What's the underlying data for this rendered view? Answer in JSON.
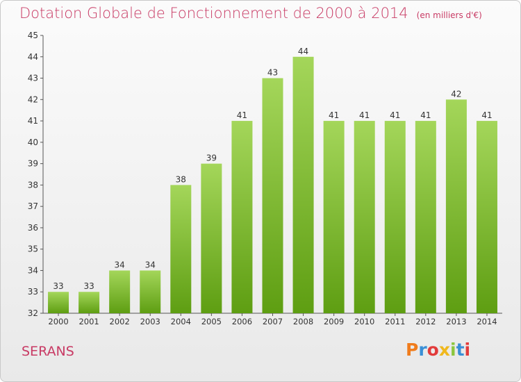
{
  "title": "Dotation Globale de Fonctionnement de 2000 à 2014",
  "unit_note": "(en milliers d'€)",
  "town": "SERANS",
  "logo": {
    "text": "Proxiti",
    "colors": [
      "#f07c1c",
      "#3a8fd6",
      "#e23b3b",
      "#f0b81c",
      "#8cc63f",
      "#3a8fd6",
      "#e23b3b"
    ]
  },
  "colors": {
    "accent": "#c83a64",
    "bar_top": "#a4d65a",
    "bar_bottom": "#5e9e12"
  },
  "chart_data": {
    "type": "bar",
    "categories": [
      "2000",
      "2001",
      "2002",
      "2003",
      "2004",
      "2005",
      "2006",
      "2007",
      "2008",
      "2009",
      "2010",
      "2011",
      "2012",
      "2013",
      "2014"
    ],
    "values": [
      33,
      33,
      34,
      34,
      38,
      39,
      41,
      43,
      44,
      41,
      41,
      41,
      41,
      42,
      41
    ],
    "ylim": [
      32,
      45
    ],
    "yticks": [
      32,
      33,
      34,
      35,
      36,
      37,
      38,
      39,
      40,
      41,
      42,
      43,
      44,
      45
    ],
    "xlabel": "",
    "ylabel": "",
    "grid": false,
    "data_labels": true
  }
}
